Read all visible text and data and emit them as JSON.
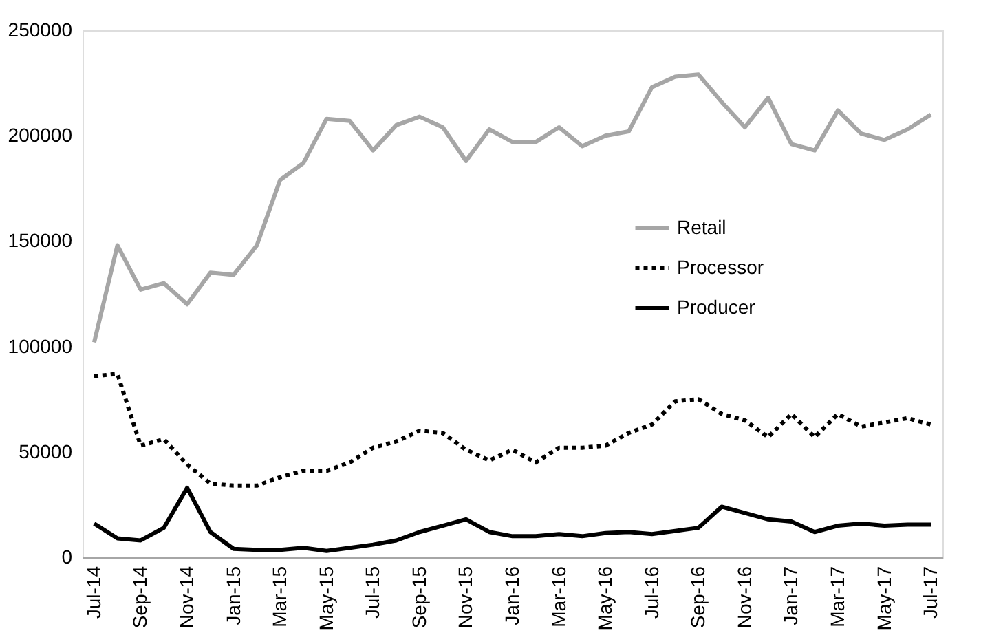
{
  "chart_data": {
    "type": "line",
    "categories": [
      "Jul-14",
      null,
      "Sep-14",
      null,
      "Nov-14",
      null,
      "Jan-15",
      null,
      "Mar-15",
      null,
      "May-15",
      null,
      "Jul-15",
      null,
      "Sep-15",
      null,
      "Nov-15",
      null,
      "Jan-16",
      null,
      "Mar-16",
      null,
      "May-16",
      null,
      "Jul-16",
      null,
      "Sep-16",
      null,
      "Nov-16",
      null,
      "Jan-17",
      null,
      "Mar-17",
      null,
      "May-17",
      null,
      "Jul-17"
    ],
    "series": [
      {
        "name": "Retail",
        "color": "#a6a6a6",
        "line_style": "solid",
        "values": [
          102000,
          148000,
          127000,
          130000,
          120000,
          135000,
          134000,
          148000,
          179000,
          187000,
          208000,
          207000,
          193000,
          205000,
          209000,
          204000,
          188000,
          203000,
          197000,
          197000,
          204000,
          195000,
          200000,
          202000,
          223000,
          228000,
          229000,
          216000,
          204000,
          218000,
          196000,
          193000,
          212000,
          201000,
          198000,
          203000,
          210000
        ]
      },
      {
        "name": "Processor",
        "color": "#000000",
        "line_style": "dotted",
        "values": [
          86000,
          87000,
          53000,
          56000,
          44000,
          35000,
          34000,
          34000,
          38000,
          41000,
          41000,
          45000,
          52000,
          55000,
          60000,
          59000,
          51000,
          46000,
          51000,
          45000,
          52000,
          52000,
          53000,
          59000,
          63000,
          74000,
          75000,
          68000,
          65000,
          57000,
          68000,
          57000,
          68000,
          62000,
          64000,
          66000,
          63000
        ]
      },
      {
        "name": "Producer",
        "color": "#000000",
        "line_style": "solid",
        "values": [
          16000,
          9000,
          8000,
          14000,
          33000,
          12000,
          4000,
          3500,
          3500,
          4500,
          3000,
          4500,
          6000,
          8000,
          12000,
          15000,
          18000,
          12000,
          10000,
          10000,
          11000,
          10000,
          11500,
          12000,
          11000,
          12500,
          14000,
          24000,
          21000,
          18000,
          17000,
          12000,
          15000,
          16000,
          15000,
          15500,
          15500
        ]
      }
    ],
    "ylim": [
      0,
      250000
    ],
    "yticks": [
      0,
      50000,
      100000,
      150000,
      200000,
      250000
    ],
    "grid": false,
    "legend": "right"
  }
}
